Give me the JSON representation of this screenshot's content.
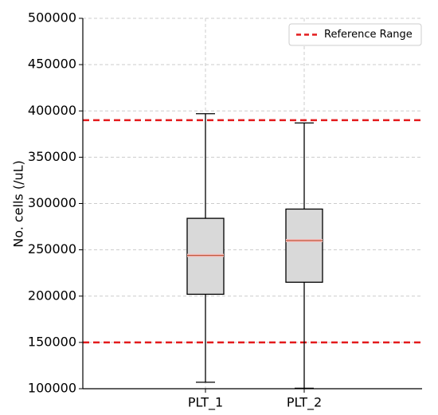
{
  "chart_data": {
    "type": "box",
    "ylabel": "No. cells (/uL)",
    "xlabel": "",
    "title": "",
    "ylim": [
      100000,
      500000
    ],
    "yticks": [
      "100000",
      "150000",
      "200000",
      "250000",
      "300000",
      "350000",
      "400000",
      "450000",
      "500000"
    ],
    "grid": true,
    "legend_position": "top-right",
    "categories": [
      "PLT_1",
      "PLT_2"
    ],
    "boxes": [
      {
        "label": "PLT_1",
        "whisker_low": 107000,
        "q1": 202000,
        "median": 244000,
        "q3": 284000,
        "whisker_high": 397000
      },
      {
        "label": "PLT_2",
        "whisker_low": 100500,
        "q1": 215000,
        "median": 260000,
        "q3": 294000,
        "whisker_high": 387000
      }
    ],
    "reference_lines": [
      {
        "name": "Reference Range",
        "value": 390000,
        "color": "#e31a1c"
      },
      {
        "value": 150000,
        "color": "#e31a1c"
      }
    ],
    "legend": [
      "Reference Range"
    ],
    "colors": {
      "box_fill": "#d9d9d9",
      "box_edge": "#000000",
      "median": "#e8a8a0",
      "reference": "#e31a1c",
      "grid": "#cccccc"
    }
  }
}
